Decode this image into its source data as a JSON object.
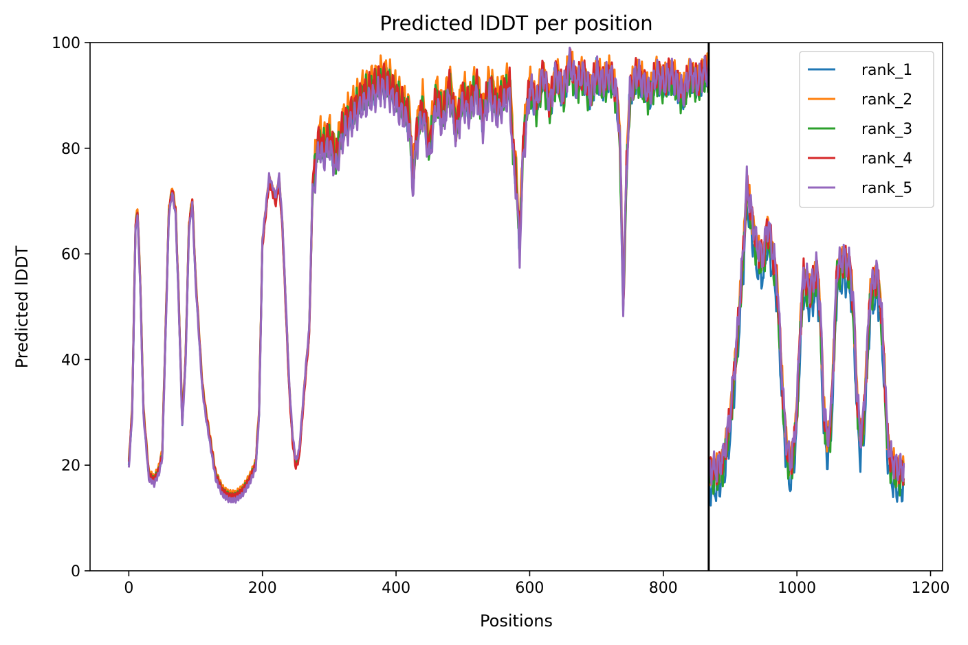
{
  "chart_data": {
    "type": "line",
    "title": "Predicted lDDT per position",
    "xlabel": "Positions",
    "ylabel": "Predicted lDDT",
    "xlim": [
      -58,
      1218
    ],
    "ylim": [
      0,
      100
    ],
    "xticks": [
      0,
      200,
      400,
      600,
      800,
      1000,
      1200
    ],
    "yticks": [
      0,
      20,
      40,
      60,
      80,
      100
    ],
    "grid": false,
    "legend_position": "top-right",
    "chain_break": 868,
    "series_count": 5,
    "series": [
      {
        "name": "rank_1",
        "color": "#1f77b4",
        "offset": [
          0.0,
          0.0,
          -0.4,
          -0.2,
          -2.5
        ]
      },
      {
        "name": "rank_2",
        "color": "#ff7f0e",
        "offset": [
          0.8,
          0.5,
          1.8,
          0.8,
          1.0
        ]
      },
      {
        "name": "rank_3",
        "color": "#2ca02c",
        "offset": [
          0.3,
          0.0,
          0.2,
          -1.0,
          -0.5
        ]
      },
      {
        "name": "rank_4",
        "color": "#d62728",
        "offset": [
          0.2,
          -0.6,
          0.3,
          0.6,
          1.0
        ]
      },
      {
        "name": "rank_5",
        "color": "#9467bd",
        "offset": [
          -0.6,
          0.8,
          -2.0,
          0.3,
          1.5
        ]
      }
    ],
    "base_profile": [
      [
        0,
        20
      ],
      [
        5,
        30
      ],
      [
        10,
        65
      ],
      [
        13,
        68
      ],
      [
        17,
        55
      ],
      [
        22,
        30
      ],
      [
        30,
        18
      ],
      [
        38,
        17
      ],
      [
        45,
        19
      ],
      [
        50,
        22
      ],
      [
        55,
        45
      ],
      [
        60,
        68
      ],
      [
        65,
        72
      ],
      [
        70,
        68
      ],
      [
        75,
        50
      ],
      [
        80,
        28
      ],
      [
        85,
        40
      ],
      [
        90,
        65
      ],
      [
        95,
        70
      ],
      [
        100,
        55
      ],
      [
        105,
        45
      ],
      [
        110,
        35
      ],
      [
        115,
        30
      ],
      [
        120,
        26
      ],
      [
        125,
        22
      ],
      [
        130,
        18
      ],
      [
        140,
        15
      ],
      [
        150,
        14
      ],
      [
        160,
        14
      ],
      [
        170,
        15
      ],
      [
        180,
        17
      ],
      [
        190,
        20
      ],
      [
        195,
        30
      ],
      [
        200,
        62
      ],
      [
        205,
        68
      ],
      [
        210,
        74
      ],
      [
        215,
        72
      ],
      [
        220,
        70
      ],
      [
        225,
        74
      ],
      [
        230,
        65
      ],
      [
        235,
        50
      ],
      [
        240,
        35
      ],
      [
        245,
        25
      ],
      [
        250,
        20
      ],
      [
        255,
        22
      ],
      [
        260,
        30
      ],
      [
        265,
        38
      ],
      [
        270,
        45
      ],
      [
        275,
        72
      ],
      [
        280,
        78
      ],
      [
        285,
        82
      ],
      [
        290,
        80
      ],
      [
        300,
        82
      ],
      [
        310,
        78
      ],
      [
        320,
        84
      ],
      [
        330,
        86
      ],
      [
        340,
        88
      ],
      [
        350,
        90
      ],
      [
        360,
        91
      ],
      [
        370,
        92
      ],
      [
        380,
        93
      ],
      [
        390,
        92
      ],
      [
        400,
        90
      ],
      [
        410,
        88
      ],
      [
        420,
        86
      ],
      [
        425,
        74
      ],
      [
        430,
        82
      ],
      [
        440,
        88
      ],
      [
        450,
        80
      ],
      [
        460,
        90
      ],
      [
        470,
        86
      ],
      [
        480,
        92
      ],
      [
        490,
        84
      ],
      [
        500,
        90
      ],
      [
        510,
        88
      ],
      [
        520,
        92
      ],
      [
        530,
        86
      ],
      [
        540,
        92
      ],
      [
        550,
        88
      ],
      [
        560,
        90
      ],
      [
        570,
        92
      ],
      [
        575,
        80
      ],
      [
        580,
        74
      ],
      [
        585,
        62
      ],
      [
        590,
        80
      ],
      [
        600,
        92
      ],
      [
        610,
        88
      ],
      [
        620,
        94
      ],
      [
        630,
        88
      ],
      [
        640,
        94
      ],
      [
        650,
        90
      ],
      [
        660,
        96
      ],
      [
        670,
        92
      ],
      [
        680,
        94
      ],
      [
        690,
        90
      ],
      [
        700,
        94
      ],
      [
        710,
        92
      ],
      [
        720,
        94
      ],
      [
        730,
        90
      ],
      [
        735,
        82
      ],
      [
        740,
        50
      ],
      [
        745,
        76
      ],
      [
        750,
        90
      ],
      [
        760,
        94
      ],
      [
        770,
        92
      ],
      [
        780,
        90
      ],
      [
        790,
        94
      ],
      [
        800,
        92
      ],
      [
        810,
        94
      ],
      [
        820,
        92
      ],
      [
        830,
        90
      ],
      [
        840,
        94
      ],
      [
        850,
        92
      ],
      [
        860,
        94
      ],
      [
        868,
        94
      ],
      [
        869,
        18
      ],
      [
        880,
        18
      ],
      [
        890,
        20
      ],
      [
        900,
        28
      ],
      [
        910,
        42
      ],
      [
        920,
        60
      ],
      [
        925,
        72
      ],
      [
        930,
        68
      ],
      [
        940,
        60
      ],
      [
        950,
        58
      ],
      [
        955,
        64
      ],
      [
        960,
        62
      ],
      [
        970,
        54
      ],
      [
        980,
        30
      ],
      [
        985,
        22
      ],
      [
        990,
        19
      ],
      [
        995,
        22
      ],
      [
        1000,
        30
      ],
      [
        1005,
        45
      ],
      [
        1010,
        55
      ],
      [
        1020,
        52
      ],
      [
        1030,
        56
      ],
      [
        1035,
        48
      ],
      [
        1040,
        30
      ],
      [
        1045,
        24
      ],
      [
        1050,
        26
      ],
      [
        1055,
        40
      ],
      [
        1060,
        56
      ],
      [
        1070,
        58
      ],
      [
        1080,
        56
      ],
      [
        1085,
        48
      ],
      [
        1090,
        32
      ],
      [
        1095,
        24
      ],
      [
        1100,
        28
      ],
      [
        1105,
        40
      ],
      [
        1110,
        52
      ],
      [
        1120,
        55
      ],
      [
        1125,
        50
      ],
      [
        1130,
        40
      ],
      [
        1135,
        25
      ],
      [
        1140,
        20
      ],
      [
        1150,
        18
      ],
      [
        1160,
        18
      ]
    ]
  }
}
